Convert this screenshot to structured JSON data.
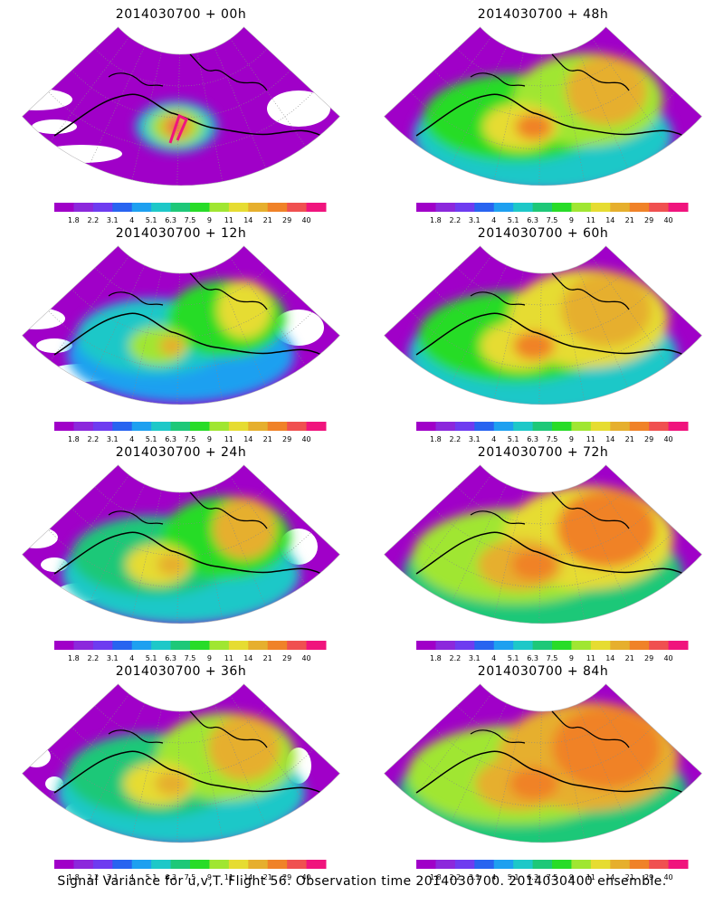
{
  "panels": [
    {
      "title": "2014030700 + 00h",
      "forecast_hour": 0
    },
    {
      "title": "2014030700 + 48h",
      "forecast_hour": 48
    },
    {
      "title": "2014030700 + 12h",
      "forecast_hour": 12
    },
    {
      "title": "2014030700 + 60h",
      "forecast_hour": 60
    },
    {
      "title": "2014030700 + 24h",
      "forecast_hour": 24
    },
    {
      "title": "2014030700 + 72h",
      "forecast_hour": 72
    },
    {
      "title": "2014030700 + 36h",
      "forecast_hour": 36
    },
    {
      "title": "2014030700 + 84h",
      "forecast_hour": 84
    }
  ],
  "colorbar": {
    "labels": [
      "1.8",
      "2.2",
      "3.1",
      "4",
      "5.1",
      "6.3",
      "7.5",
      "9",
      "11",
      "14",
      "21",
      "29",
      "40"
    ],
    "colors": [
      "#a000c8",
      "#8c28dc",
      "#6e3cf0",
      "#2864f0",
      "#1ea0f0",
      "#1ec8c8",
      "#1ec878",
      "#28dc28",
      "#a0e632",
      "#e6dc32",
      "#e6af2d",
      "#f08228",
      "#f05050",
      "#f0147d"
    ]
  },
  "caption": "Signal Variance for u,v,T. Flight 56. Observation time 2014030700. 2014030400 ensemble."
}
